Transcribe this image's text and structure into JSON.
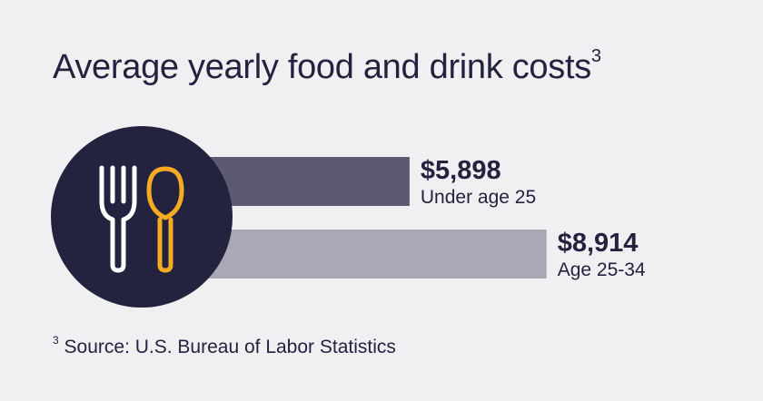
{
  "title": "Average yearly food and drink costs",
  "title_footnote_marker": "3",
  "chart_data": {
    "type": "bar",
    "orientation": "horizontal",
    "categories": [
      "Under age 25",
      "Age 25-34"
    ],
    "values": [
      5898,
      8914
    ],
    "value_labels": [
      "$5,898",
      "$8,914"
    ],
    "colors": [
      "#5b5a72",
      "#a9a8b4"
    ]
  },
  "icon": {
    "name": "fork-and-spoon-icon",
    "circle_color": "#23223f",
    "fork_color": "#ffffff",
    "spoon_color": "#f5ac23"
  },
  "footnote": {
    "marker": "3",
    "text": "Source: U.S. Bureau of Labor Statistics"
  }
}
